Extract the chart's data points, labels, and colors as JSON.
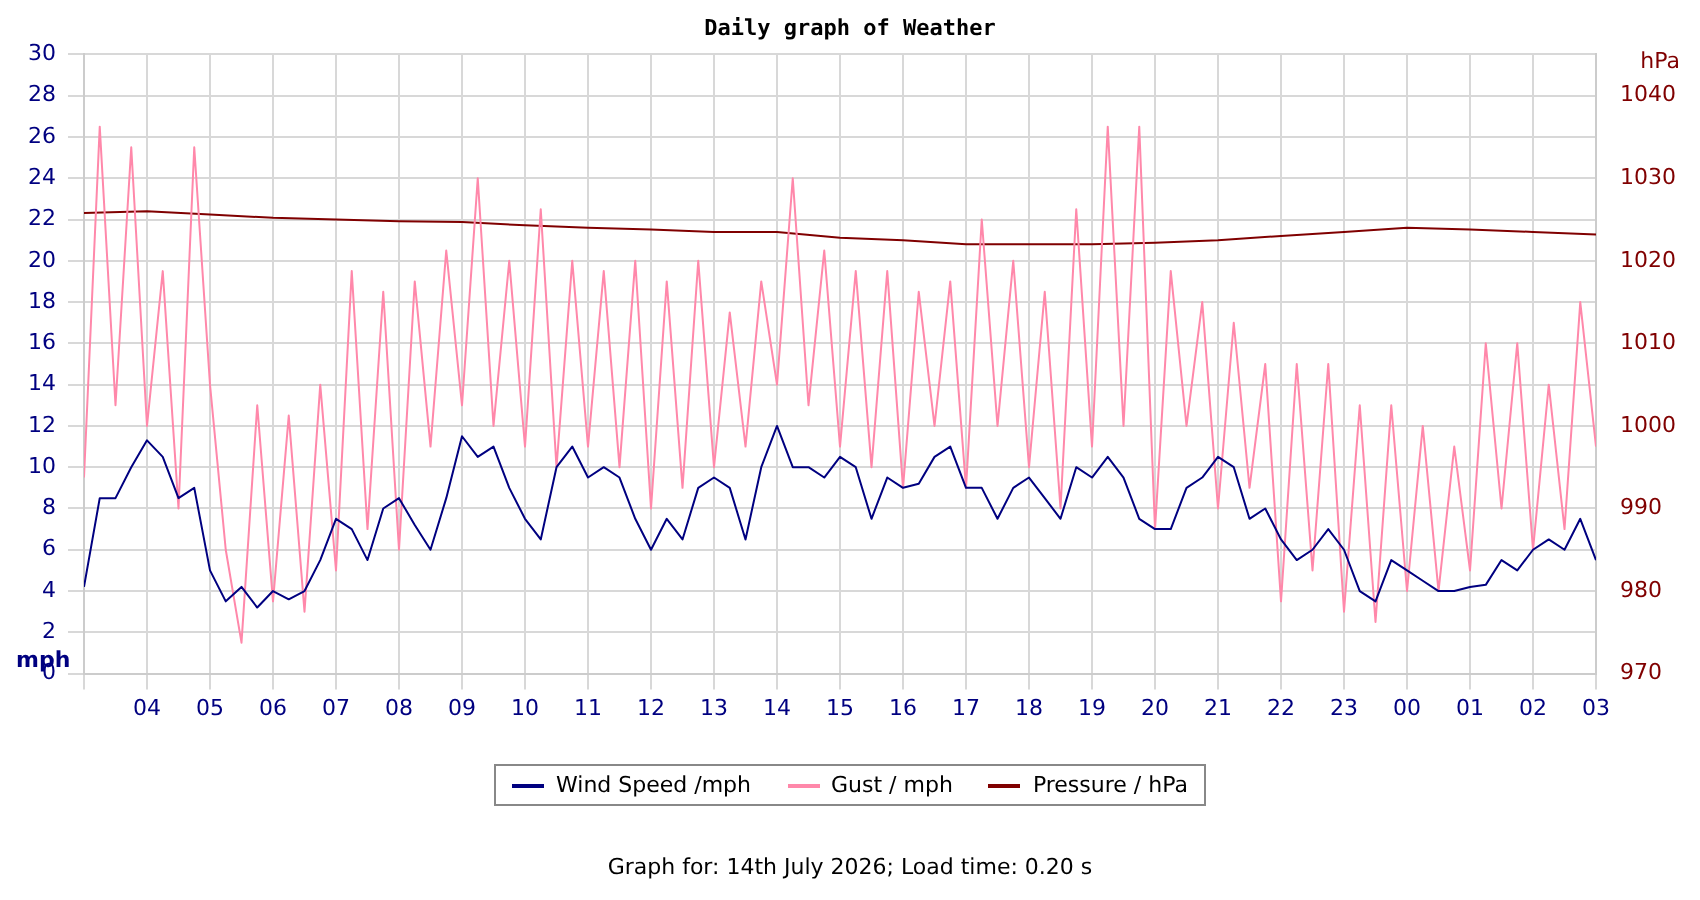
{
  "chart_data": {
    "type": "line",
    "title": "Daily graph of Weather",
    "ylabel": "mph",
    "y2label": "hPa",
    "x": [
      "2026-07-13T03:00",
      "2026-07-13T03:15",
      "2026-07-13T03:30",
      "2026-07-13T03:45",
      "2026-07-13T04:00",
      "2026-07-13T04:15",
      "2026-07-13T04:30",
      "2026-07-13T04:45",
      "2026-07-13T05:00",
      "2026-07-13T05:15",
      "2026-07-13T05:30",
      "2026-07-13T05:45",
      "2026-07-13T06:00",
      "2026-07-13T06:15",
      "2026-07-13T06:30",
      "2026-07-13T06:45",
      "2026-07-13T07:00",
      "2026-07-13T07:15",
      "2026-07-13T07:30",
      "2026-07-13T07:45",
      "2026-07-13T08:00",
      "2026-07-13T08:15",
      "2026-07-13T08:30",
      "2026-07-13T08:45",
      "2026-07-13T09:00",
      "2026-07-13T09:15",
      "2026-07-13T09:30",
      "2026-07-13T09:45",
      "2026-07-13T10:00",
      "2026-07-13T10:15",
      "2026-07-13T10:30",
      "2026-07-13T10:45",
      "2026-07-13T11:00",
      "2026-07-13T11:15",
      "2026-07-13T11:30",
      "2026-07-13T11:45",
      "2026-07-13T12:00",
      "2026-07-13T12:15",
      "2026-07-13T12:30",
      "2026-07-13T12:45",
      "2026-07-13T13:00",
      "2026-07-13T13:15",
      "2026-07-13T13:30",
      "2026-07-13T13:45",
      "2026-07-13T14:00",
      "2026-07-13T14:15",
      "2026-07-13T14:30",
      "2026-07-13T14:45",
      "2026-07-13T15:00",
      "2026-07-13T15:15",
      "2026-07-13T15:30",
      "2026-07-13T15:45",
      "2026-07-13T16:00",
      "2026-07-13T16:15",
      "2026-07-13T16:30",
      "2026-07-13T16:45",
      "2026-07-13T17:00",
      "2026-07-13T17:15",
      "2026-07-13T17:30",
      "2026-07-13T17:45",
      "2026-07-13T18:00",
      "2026-07-13T18:15",
      "2026-07-13T18:30",
      "2026-07-13T18:45",
      "2026-07-13T19:00",
      "2026-07-13T19:15",
      "2026-07-13T19:30",
      "2026-07-13T19:45",
      "2026-07-13T20:00",
      "2026-07-13T20:15",
      "2026-07-13T20:30",
      "2026-07-13T20:45",
      "2026-07-13T21:00",
      "2026-07-13T21:15",
      "2026-07-13T21:30",
      "2026-07-13T21:45",
      "2026-07-13T22:00",
      "2026-07-13T22:15",
      "2026-07-13T22:30",
      "2026-07-13T22:45",
      "2026-07-13T23:00",
      "2026-07-13T23:15",
      "2026-07-13T23:30",
      "2026-07-13T23:45",
      "2026-07-14T00:00",
      "2026-07-14T00:15",
      "2026-07-14T00:30",
      "2026-07-14T00:45",
      "2026-07-14T01:00",
      "2026-07-14T01:15",
      "2026-07-14T01:30",
      "2026-07-14T01:45",
      "2026-07-14T02:00",
      "2026-07-14T02:15",
      "2026-07-14T02:30",
      "2026-07-14T02:45",
      "2026-07-14T03:00"
    ],
    "series": [
      {
        "name": "Wind Speed /mph",
        "color": "#000080",
        "values": [
          4.2,
          8.5,
          8.5,
          10,
          11.3,
          10.5,
          8.5,
          9,
          5,
          3.5,
          4.2,
          3.2,
          4,
          3.6,
          4,
          5.5,
          7.5,
          7,
          5.5,
          8,
          8.5,
          7.2,
          6,
          8.5,
          11.5,
          10.5,
          11,
          9,
          7.5,
          6.5,
          10,
          11,
          9.5,
          10,
          9.5,
          7.5,
          6,
          7.5,
          6.5,
          9,
          9.5,
          9,
          6.5,
          10,
          12,
          10,
          10,
          9.5,
          10.5,
          10,
          7.5,
          9.5,
          9,
          9.2,
          10.5,
          11,
          9,
          9,
          7.5,
          9,
          9.5,
          8.5,
          7.5,
          10,
          9.5,
          10.5,
          9.5,
          7.5,
          7,
          7,
          9,
          9.5,
          10.5,
          10,
          7.5,
          8,
          6.5,
          5.5,
          6,
          7,
          6,
          4,
          3.5,
          5.5,
          5,
          4.5,
          4,
          4,
          4.2,
          4.3,
          5.5,
          5,
          6,
          6.5,
          6,
          7.5,
          5.5
        ]
      },
      {
        "name": "Gust / mph",
        "color": "#ff88aa",
        "values": [
          9.5,
          26.5,
          13,
          25.5,
          12,
          19.5,
          8,
          25.5,
          14,
          6,
          1.5,
          13,
          3.5,
          12.5,
          3,
          14,
          5,
          19.5,
          7,
          18.5,
          6,
          19,
          11,
          20.5,
          13,
          24,
          12,
          20,
          11,
          22.5,
          10,
          20,
          11,
          19.5,
          10,
          20,
          8,
          19,
          9,
          20,
          10,
          17.5,
          11,
          19,
          14,
          24,
          13,
          20.5,
          11,
          19.5,
          10,
          19.5,
          9,
          18.5,
          12,
          19,
          9,
          22,
          12,
          20,
          10,
          18.5,
          8,
          22.5,
          11,
          26.5,
          12,
          26.5,
          7,
          19.5,
          12,
          18,
          8,
          17,
          9,
          15,
          3.5,
          15,
          5,
          15,
          3,
          13,
          2.5,
          13,
          4,
          12,
          4,
          11,
          5,
          16,
          8,
          16,
          6,
          14,
          7,
          18,
          11
        ]
      },
      {
        "name": "Pressure / hPa",
        "color": "#800000",
        "axis": "y2",
        "x": [
          "2026-07-13T03:00",
          "2026-07-13T04:00",
          "2026-07-13T05:00",
          "2026-07-13T06:00",
          "2026-07-13T07:00",
          "2026-07-13T08:00",
          "2026-07-13T09:00",
          "2026-07-13T10:00",
          "2026-07-13T11:00",
          "2026-07-13T12:00",
          "2026-07-13T13:00",
          "2026-07-13T14:00",
          "2026-07-13T15:00",
          "2026-07-13T16:00",
          "2026-07-13T17:00",
          "2026-07-13T18:00",
          "2026-07-13T19:00",
          "2026-07-13T20:00",
          "2026-07-13T21:00",
          "2026-07-13T22:00",
          "2026-07-13T23:00",
          "2026-07-14T00:00",
          "2026-07-14T01:00",
          "2026-07-14T02:00",
          "2026-07-14T03:00"
        ],
        "values": [
          1025.8,
          1026,
          1025.6,
          1025.2,
          1025,
          1024.8,
          1024.7,
          1024.3,
          1024,
          1023.8,
          1023.5,
          1023.5,
          1022.8,
          1022.5,
          1022,
          1022,
          1022,
          1022.2,
          1022.5,
          1023,
          1023.5,
          1024,
          1023.8,
          1023.5,
          1023.2
        ]
      }
    ],
    "xlim": [
      "2026-07-13T03:00",
      "2026-07-14T03:00"
    ],
    "xticks": [
      {
        "value": "2026-07-13T03:00",
        "label": null
      },
      {
        "value": "2026-07-13T04:00",
        "label": "04"
      },
      {
        "value": "2026-07-13T05:00",
        "label": "05"
      },
      {
        "value": "2026-07-13T06:00",
        "label": "06"
      },
      {
        "value": "2026-07-13T07:00",
        "label": "07"
      },
      {
        "value": "2026-07-13T08:00",
        "label": "08"
      },
      {
        "value": "2026-07-13T09:00",
        "label": "09"
      },
      {
        "value": "2026-07-13T10:00",
        "label": "10"
      },
      {
        "value": "2026-07-13T11:00",
        "label": "11"
      },
      {
        "value": "2026-07-13T12:00",
        "label": "12"
      },
      {
        "value": "2026-07-13T13:00",
        "label": "13"
      },
      {
        "value": "2026-07-13T14:00",
        "label": "14"
      },
      {
        "value": "2026-07-13T15:00",
        "label": "15"
      },
      {
        "value": "2026-07-13T16:00",
        "label": "16"
      },
      {
        "value": "2026-07-13T17:00",
        "label": "17"
      },
      {
        "value": "2026-07-13T18:00",
        "label": "18"
      },
      {
        "value": "2026-07-13T19:00",
        "label": "19"
      },
      {
        "value": "2026-07-13T20:00",
        "label": "20"
      },
      {
        "value": "2026-07-13T21:00",
        "label": "21"
      },
      {
        "value": "2026-07-13T22:00",
        "label": "22"
      },
      {
        "value": "2026-07-13T23:00",
        "label": "23"
      },
      {
        "value": "2026-07-14T00:00",
        "label": "00"
      },
      {
        "value": "2026-07-14T01:00",
        "label": "01"
      },
      {
        "value": "2026-07-14T02:00",
        "label": "02"
      },
      {
        "value": "2026-07-14T03:00",
        "label": "03"
      }
    ],
    "ylim": [
      0,
      30
    ],
    "yticks": [
      0,
      2,
      4,
      6,
      8,
      10,
      12,
      14,
      16,
      18,
      20,
      22,
      24,
      26,
      28,
      30
    ],
    "y2lim": [
      970,
      1045
    ],
    "y2ticks": [
      970,
      980,
      990,
      1000,
      1010,
      1020,
      1030,
      1040
    ],
    "grid": true,
    "legend": "bottom",
    "annotations": [
      "Graph for: 14th July 2026; Load time: 0.20 s"
    ]
  }
}
